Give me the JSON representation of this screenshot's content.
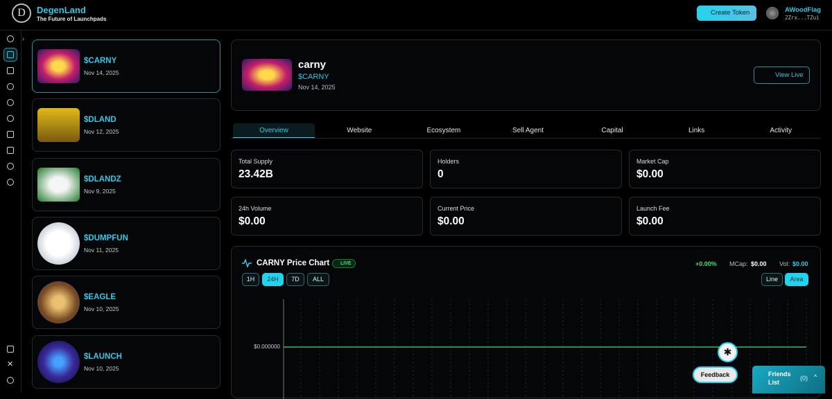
{
  "header": {
    "brand": "DegenLand",
    "tagline": "The Future of Launchpads",
    "create_button": "Create Token",
    "user": {
      "name": "AWoodFlag",
      "address": "2Zrx...TZui"
    }
  },
  "tokens": [
    {
      "symbol": "$CARNY",
      "date": "Nov 14, 2025"
    },
    {
      "symbol": "$DLAND",
      "date": "Nov 12, 2025"
    },
    {
      "symbol": "$DLANDZ",
      "date": "Nov 9, 2025"
    },
    {
      "symbol": "$DUMPFUN",
      "date": "Nov 11, 2025"
    },
    {
      "symbol": "$EAGLE",
      "date": "Nov 10, 2025"
    },
    {
      "symbol": "$LAUNCH",
      "date": "Nov 10, 2025"
    }
  ],
  "detail": {
    "name": "carny",
    "symbol": "$CARNY",
    "date": "Nov 14, 2025",
    "view_button": "View Live"
  },
  "tabs": [
    "Overview",
    "Website",
    "Ecosystem",
    "Sell Agent",
    "Capital",
    "Links",
    "Activity"
  ],
  "stats": [
    {
      "label": "Total Supply",
      "value": "23.42B"
    },
    {
      "label": "Holders",
      "value": "0"
    },
    {
      "label": "Market Cap",
      "value": "$0.00"
    },
    {
      "label": "24h Volume",
      "value": "$0.00"
    },
    {
      "label": "Current Price",
      "value": "$0.00"
    },
    {
      "label": "Launch Fee",
      "value": "$0.00"
    }
  ],
  "price_chart": {
    "title": "CARNY Price Chart",
    "live": "LIVE",
    "change": "+0.00%",
    "mcap_label": "MCap:",
    "mcap": "$0.00",
    "vol_label": "Vol:",
    "vol": "$0.00",
    "ranges": [
      "1H",
      "24H",
      "7D",
      "ALL"
    ],
    "modes": [
      "Line",
      "Area"
    ],
    "y_label": "$0.000000"
  },
  "feedback": "Feedback",
  "friends": {
    "label": "Friends List",
    "count": "(0)"
  }
}
